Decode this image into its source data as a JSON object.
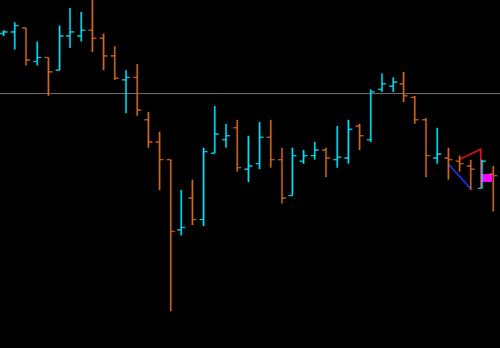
{
  "chart_data": {
    "type": "ohlc",
    "up_color": "#00e5ff",
    "down_color": "#d2691e",
    "ylim": [
      0,
      436
    ],
    "open": [
      394,
      396,
      401,
      359,
      364,
      348,
      391,
      391,
      398,
      388,
      366,
      336,
      339,
      286,
      258,
      236,
      148,
      188,
      161,
      244,
      261,
      276,
      224,
      231,
      264,
      236,
      191,
      234,
      241,
      248,
      236,
      238,
      278,
      261,
      324,
      328,
      331,
      314,
      286,
      238,
      238,
      234,
      228,
      200,
      218
    ],
    "high": [
      398,
      408,
      401,
      384,
      364,
      404,
      426,
      421,
      436,
      394,
      378,
      348,
      356,
      296,
      271,
      236,
      198,
      211,
      251,
      303,
      281,
      286,
      266,
      283,
      286,
      251,
      251,
      248,
      258,
      251,
      278,
      286,
      281,
      324,
      344,
      339,
      346,
      316,
      288,
      276,
      251,
      241,
      236,
      236,
      228
    ],
    "low": [
      391,
      374,
      354,
      354,
      316,
      348,
      376,
      384,
      371,
      348,
      336,
      294,
      291,
      251,
      198,
      46,
      141,
      154,
      153,
      244,
      251,
      221,
      208,
      224,
      226,
      181,
      191,
      231,
      236,
      214,
      226,
      231,
      248,
      258,
      321,
      321,
      308,
      281,
      214,
      231,
      211,
      221,
      198,
      200,
      171
    ],
    "close": [
      396,
      404,
      361,
      364,
      346,
      391,
      396,
      398,
      388,
      366,
      338,
      339,
      298,
      258,
      236,
      146,
      151,
      161,
      246,
      268,
      266,
      226,
      228,
      264,
      236,
      188,
      241,
      241,
      248,
      238,
      239,
      274,
      266,
      321,
      331,
      333,
      316,
      286,
      241,
      243,
      236,
      231,
      224,
      234,
      216
    ]
  }
}
